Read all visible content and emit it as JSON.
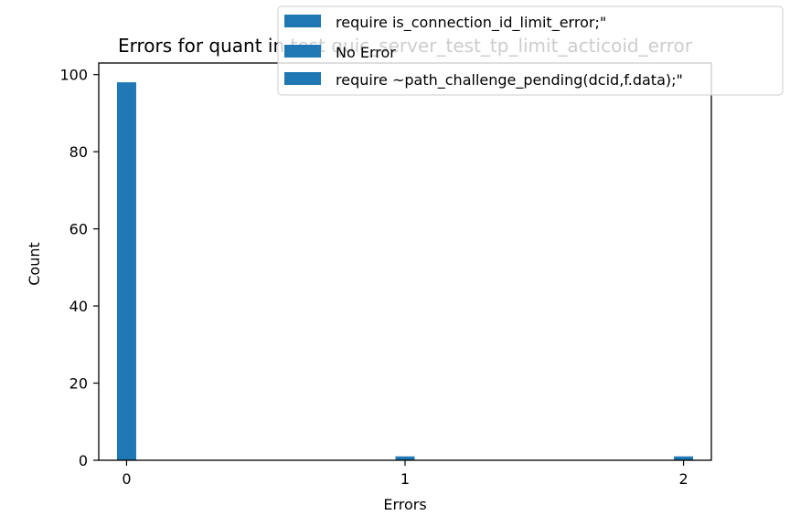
{
  "chart_data": {
    "type": "bar",
    "title": "Errors for quant in test quic_server_test_tp_limit_acticoid_error",
    "xlabel": "Errors",
    "ylabel": "Count",
    "xlim": [
      -0.1,
      2.1
    ],
    "ylim": [
      0,
      103
    ],
    "xticks": [
      0,
      1,
      2
    ],
    "xtick_labels": [
      "0",
      "1",
      "2"
    ],
    "yticks": [
      0,
      20,
      40,
      60,
      80,
      100
    ],
    "ytick_labels": [
      "0",
      "20",
      "40",
      "60",
      "80",
      "100"
    ],
    "grid": false,
    "legend_position": "top-right",
    "bar_color": "#1f77b4",
    "series": [
      {
        "name": "require is_connection_id_limit_error;\"",
        "x": 1,
        "value": 1
      },
      {
        "name": "No Error",
        "x": 0,
        "value": 98
      },
      {
        "name": "require ~path_challenge_pending(dcid,f.data);\"",
        "x": 2,
        "value": 1
      }
    ]
  }
}
